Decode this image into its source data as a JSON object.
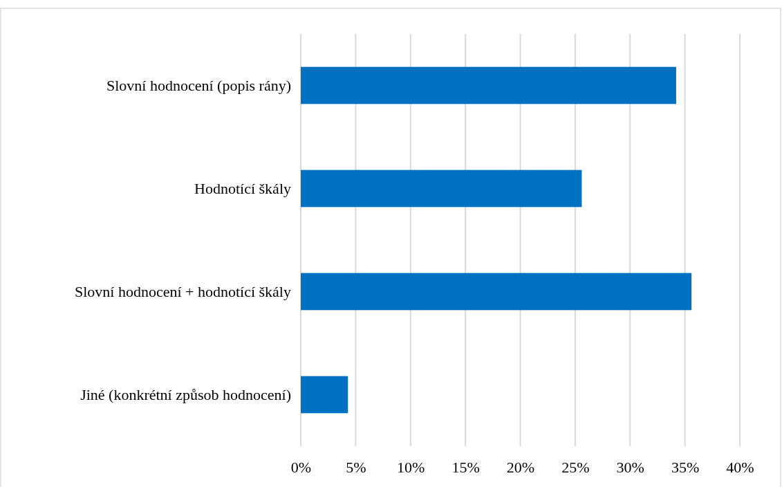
{
  "chart_data": {
    "type": "bar",
    "orientation": "horizontal",
    "categories": [
      "Slovní hodnocení (popis rány)",
      "Hodnotící škály",
      "Slovní hodnocení + hodnotící škály",
      "Jiné (konkrétní způsob hodnocení)"
    ],
    "values": [
      34.2,
      25.6,
      35.6,
      4.3
    ],
    "color": "#0070c0",
    "xlim": [
      0,
      40
    ],
    "xticks": [
      {
        "value": 0,
        "label": "0%"
      },
      {
        "value": 5,
        "label": "5%"
      },
      {
        "value": 10,
        "label": "10%"
      },
      {
        "value": 15,
        "label": "15%"
      },
      {
        "value": 20,
        "label": "20%"
      },
      {
        "value": 25,
        "label": "25%"
      },
      {
        "value": 30,
        "label": "30%"
      },
      {
        "value": 35,
        "label": "35%"
      },
      {
        "value": 40,
        "label": "40%"
      }
    ],
    "grid": "x"
  }
}
